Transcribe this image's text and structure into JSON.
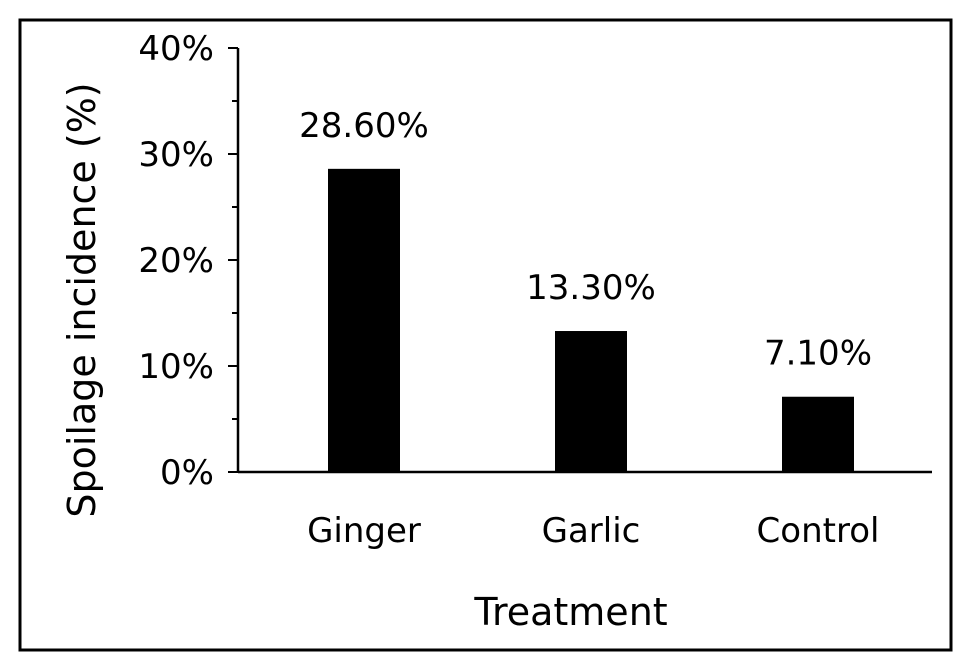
{
  "chart_data": {
    "type": "bar",
    "title": "",
    "xlabel": "Treatment",
    "ylabel": "Spoilage incidence (%)",
    "categories": [
      "Ginger",
      "Garlic",
      "Control"
    ],
    "values": [
      28.6,
      13.3,
      7.1
    ],
    "data_labels": [
      "28.60%",
      "13.30%",
      "7.10%"
    ],
    "ylim": [
      0,
      40
    ],
    "y_ticks": [
      0,
      10,
      20,
      30,
      40
    ],
    "y_tick_labels": [
      "0%",
      "10%",
      "20%",
      "30%",
      "40%"
    ],
    "grid": false,
    "legend": "none",
    "bar_color": "#000000"
  }
}
